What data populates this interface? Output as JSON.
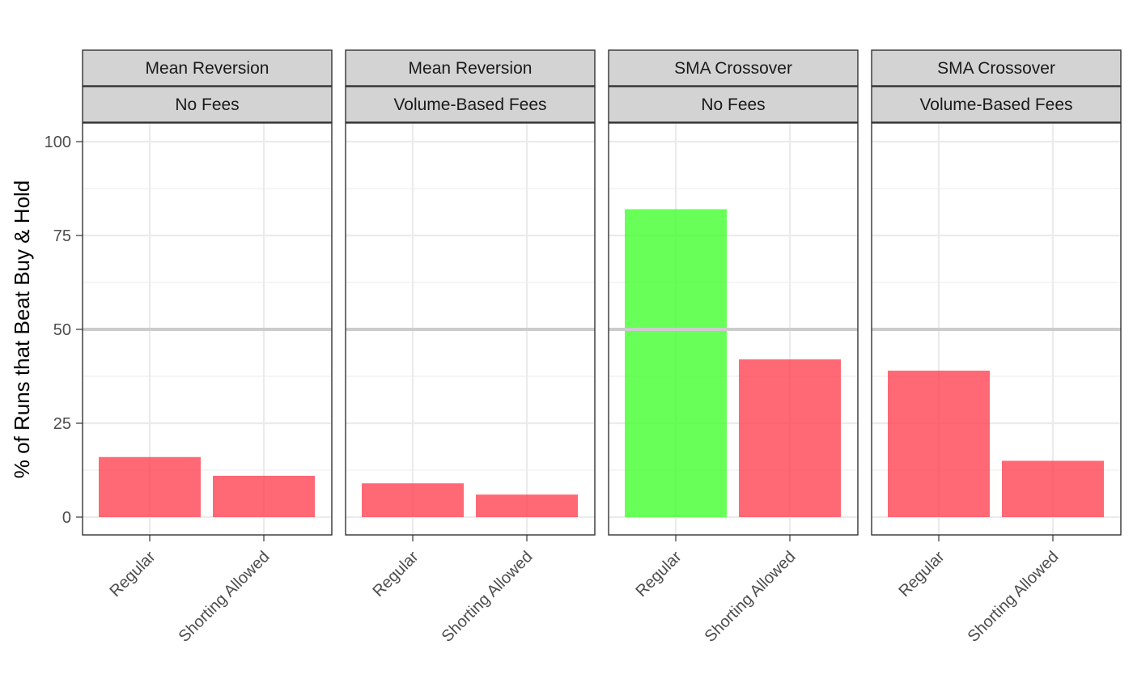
{
  "chart_data": {
    "type": "bar",
    "ylabel": "% of Runs that Beat Buy & Hold",
    "ylim": [
      -4.5,
      105
    ],
    "y_ticks": [
      0,
      25,
      50,
      75,
      100
    ],
    "reference_line": 50,
    "categories": [
      "Regular",
      "Shorting Allowed"
    ],
    "facets": [
      {
        "strategy": "Mean Reversion",
        "fees": "No Fees",
        "values": [
          16,
          11
        ],
        "colors": [
          "#ff3e4e",
          "#ff3e4e"
        ]
      },
      {
        "strategy": "Mean Reversion",
        "fees": "Volume-Based Fees",
        "values": [
          9,
          6
        ],
        "colors": [
          "#ff3e4e",
          "#ff3e4e"
        ]
      },
      {
        "strategy": "SMA Crossover",
        "fees": "No Fees",
        "values": [
          82,
          42
        ],
        "colors": [
          "#3fff2a",
          "#ff3e4e"
        ]
      },
      {
        "strategy": "SMA Crossover",
        "fees": "Volume-Based Fees",
        "values": [
          39,
          15
        ],
        "colors": [
          "#ff3e4e",
          "#ff3e4e"
        ]
      }
    ]
  }
}
